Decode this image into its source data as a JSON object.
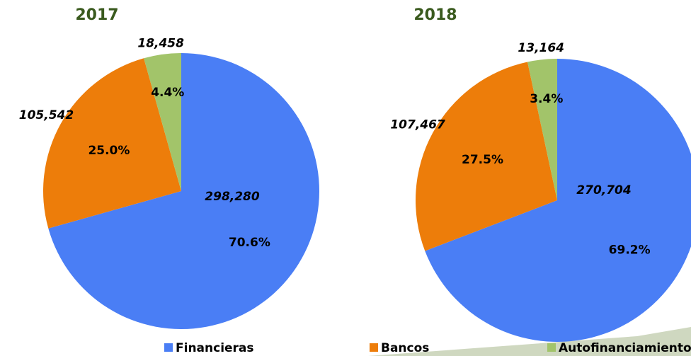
{
  "chart_data": [
    {
      "type": "pie",
      "title": "2017",
      "categories": [
        "Financieras",
        "Bancos",
        "Autofinanciamiento"
      ],
      "values": [
        298280,
        105542,
        18458
      ],
      "value_labels": [
        "298,280",
        "105,542",
        "18,458"
      ],
      "percent_labels": [
        "70.6%",
        "25.0%",
        "4.4%"
      ],
      "colors": [
        "#4a7ef5",
        "#ed7d0a",
        "#a2c46a"
      ]
    },
    {
      "type": "pie",
      "title": "2018",
      "categories": [
        "Financieras",
        "Bancos",
        "Autofinanciamiento"
      ],
      "values": [
        270704,
        107467,
        13164
      ],
      "value_labels": [
        "270,704",
        "107,467",
        "13,164"
      ],
      "percent_labels": [
        "69.2%",
        "27.5%",
        "3.4%"
      ],
      "colors": [
        "#4a7ef5",
        "#ed7d0a",
        "#a2c46a"
      ]
    }
  ]
}
